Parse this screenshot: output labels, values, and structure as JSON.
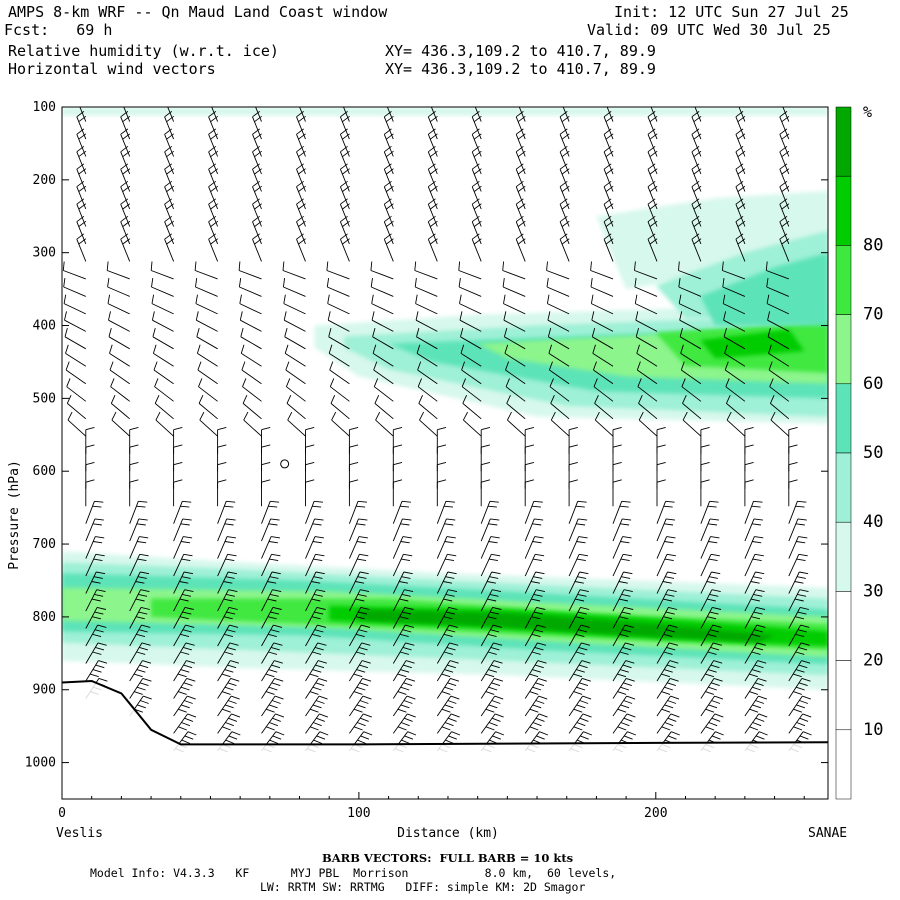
{
  "header": {
    "title": "AMPS 8-km WRF -- Qn Maud Land Coast window",
    "fcst": "Fcst:   69 h",
    "init": "Init: 12 UTC Sun 27 Jul 25",
    "valid": "Valid: 09 UTC Wed 30 Jul 25",
    "field1": "Relative humidity (w.r.t. ice)",
    "field2": "Horizontal wind vectors",
    "xy1": "XY= 436.3,109.2 to 410.7, 89.9",
    "xy2": "XY= 436.3,109.2 to 410.7, 89.9"
  },
  "chart_data": {
    "type": "heatmap",
    "ylabel": "Pressure (hPa)",
    "xlabel": "Distance (km)",
    "left_endpoint": "Veslis",
    "right_endpoint": "SANAE",
    "y_ticks": [
      100,
      200,
      300,
      400,
      500,
      600,
      700,
      800,
      900,
      1000
    ],
    "x_ticks": [
      0,
      100,
      200
    ],
    "ylim": [
      100,
      1050
    ],
    "xlim": [
      0,
      258
    ],
    "y_scale": "linear (inverted)",
    "colorbar": {
      "unit": "%",
      "levels": [
        10,
        20,
        30,
        40,
        50,
        60,
        70,
        80
      ],
      "colors": [
        "#ffffff",
        "#ffffff",
        "#ffffff",
        "#d7f8ec",
        "#9ef0d6",
        "#5de3b8",
        "#8cf58c",
        "#3fe83f",
        "#00cc00",
        "#00a800"
      ]
    },
    "rh_bands": [
      {
        "name": "upper-layer",
        "x_range": [
          85,
          258
        ],
        "p_top": 400,
        "p_bottom": 530,
        "max_rh": 85
      },
      {
        "name": "upper-right plume",
        "x_range": [
          180,
          258
        ],
        "p_top": 250,
        "p_bottom": 420,
        "max_rh": 60
      },
      {
        "name": "lower-layer",
        "x_range": [
          0,
          258
        ],
        "p_top": 720,
        "p_bottom": 900,
        "max_rh": 85
      },
      {
        "name": "top-boundary",
        "x_range": [
          0,
          258
        ],
        "p_top": 100,
        "p_bottom": 110,
        "max_rh": 45
      }
    ],
    "terrain_profile": {
      "x_km": [
        0,
        10,
        20,
        30,
        40,
        60,
        100,
        150,
        200,
        258
      ],
      "p_hpa": [
        890,
        888,
        905,
        955,
        975,
        975,
        975,
        974,
        973,
        972
      ]
    },
    "wind": "barbs throughout the section; westerly/northwesterly aloft, southerly-easterly near surface"
  },
  "footer": {
    "barb_note": "BARB VECTORS:  FULL BARB = 10 kts",
    "model_line1": "Model Info: V4.3.3   KF      MYJ PBL  Morrison           8.0 km,  60 levels,",
    "model_line2": "LW: RRTM SW: RRTMG   DIFF: simple KM: 2D Smagor"
  }
}
